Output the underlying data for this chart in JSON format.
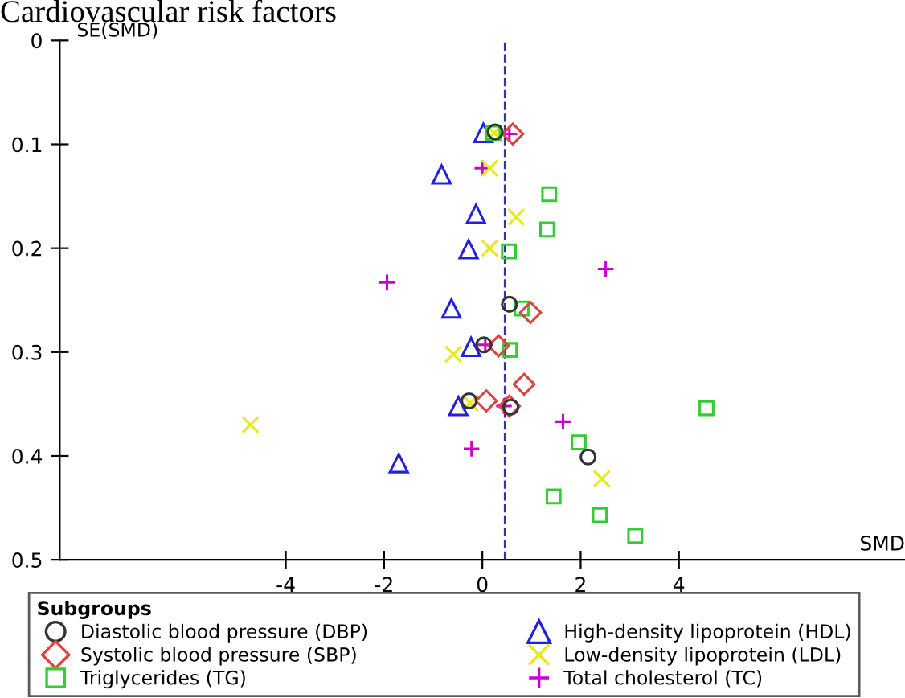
{
  "chart_data": {
    "type": "scatter",
    "title": "Cardiovascular risk factors",
    "xlabel": "SMD",
    "ylabel": "SE(SMD)",
    "legend_title": "Subgroups",
    "legend": "bottom",
    "grid": false,
    "xlim": [
      -8.6,
      8.6
    ],
    "ylim": [
      0.5,
      0
    ],
    "xticks": [
      -4,
      -2,
      0,
      2,
      4
    ],
    "yticks": [
      0,
      0.1,
      0.2,
      0.3,
      0.4,
      0.5
    ],
    "ref_lines": [
      {
        "axis": "x",
        "value": 0.46,
        "color": "#3333aa",
        "line_style": "dashed"
      }
    ],
    "series": [
      {
        "name": "Diastolic blood pressure (DBP)",
        "color": "#333333",
        "marker": "circle",
        "x": [
          0.26,
          0.55,
          0.03,
          -0.27,
          0.58,
          2.15
        ],
        "values": [
          0.088,
          0.254,
          0.293,
          0.347,
          0.353,
          0.401
        ]
      },
      {
        "name": "Systolic blood pressure (SBP)",
        "color": "#dd4444",
        "marker": "diamond",
        "x": [
          0.62,
          0.98,
          0.33,
          0.85,
          0.08,
          0.55
        ],
        "values": [
          0.09,
          0.262,
          0.294,
          0.331,
          0.347,
          0.352
        ]
      },
      {
        "name": "Triglycerides (TG)",
        "color": "#33cc33",
        "marker": "square",
        "x": [
          0.22,
          1.36,
          1.32,
          0.54,
          0.8,
          0.56,
          4.56,
          1.96,
          1.45,
          2.39,
          3.11
        ],
        "values": [
          0.089,
          0.148,
          0.182,
          0.203,
          0.258,
          0.298,
          0.354,
          0.387,
          0.439,
          0.457,
          0.477
        ]
      },
      {
        "name": "High-density lipoprotein (HDL)",
        "color": "#2222dd",
        "marker": "triangle",
        "x": [
          0.02,
          -0.83,
          -0.13,
          -0.28,
          -0.63,
          -0.23,
          -0.49,
          -1.7
        ],
        "values": [
          0.089,
          0.129,
          0.167,
          0.201,
          0.258,
          0.295,
          0.352,
          0.407
        ]
      },
      {
        "name": "Low-density lipoprotein (LDL)",
        "color": "#e8e820",
        "marker": "cross",
        "x": [
          0.24,
          0.15,
          0.69,
          0.15,
          -0.59,
          -0.25,
          -4.72,
          2.43
        ],
        "values": [
          0.089,
          0.123,
          0.17,
          0.2,
          0.302,
          0.349,
          0.37,
          0.422
        ]
      },
      {
        "name": "Total cholesterol (TC)",
        "color": "#cc00cc",
        "marker": "plus",
        "x": [
          0.55,
          0.0,
          2.51,
          -1.94,
          0.06,
          0.44,
          1.64,
          -0.22
        ],
        "values": [
          0.09,
          0.123,
          0.22,
          0.233,
          0.293,
          0.352,
          0.367,
          0.393
        ]
      }
    ]
  }
}
